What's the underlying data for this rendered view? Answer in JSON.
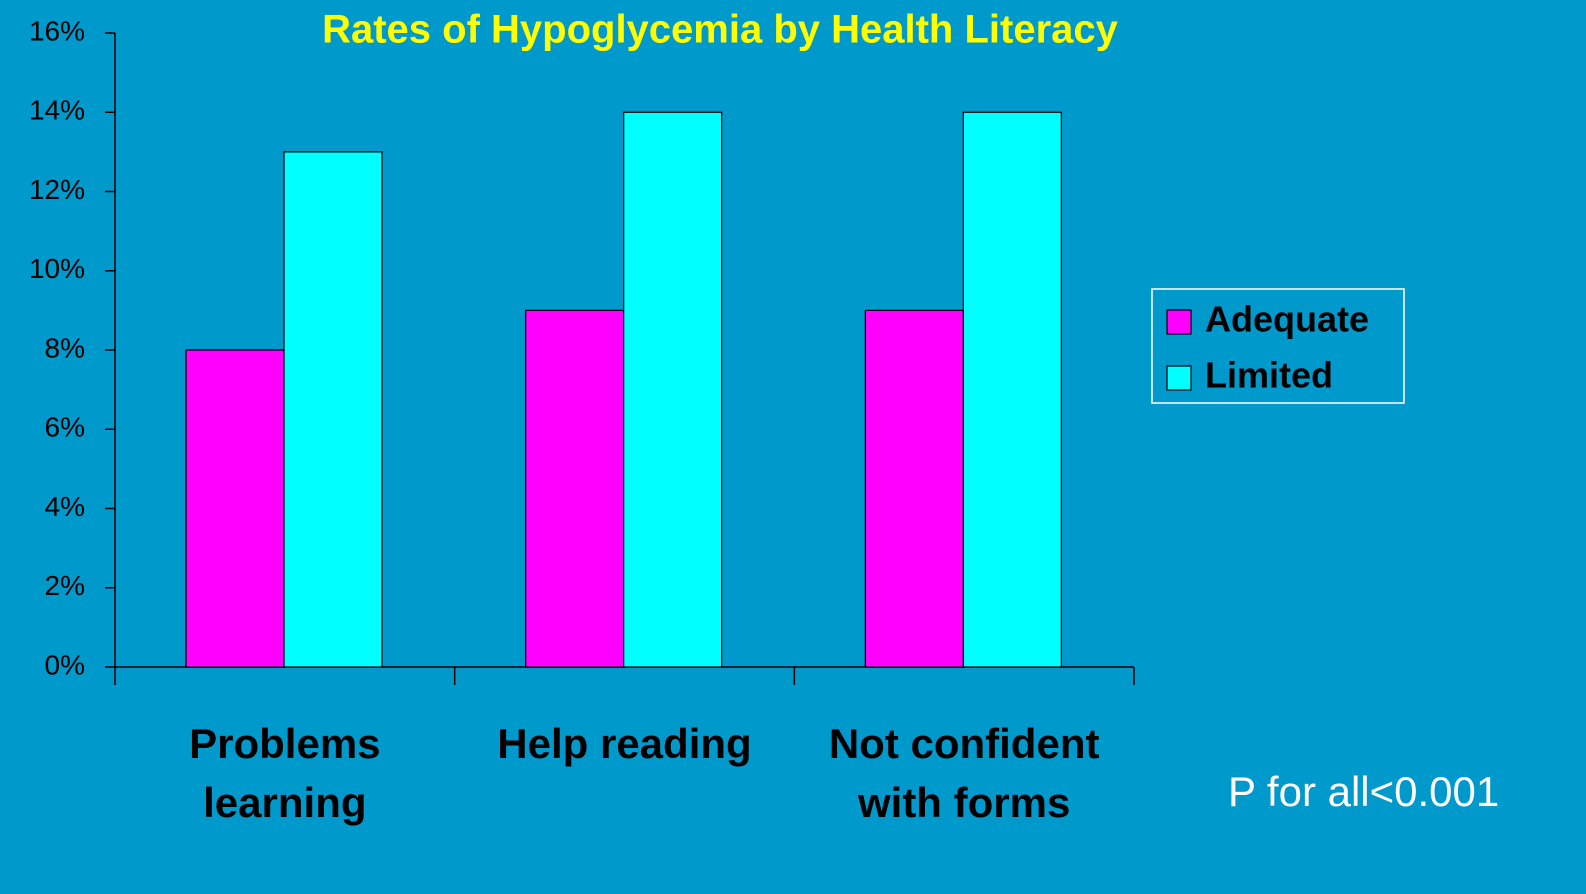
{
  "chart_data": {
    "type": "bar",
    "title": "Rates of Hypoglycemia by Health Literacy",
    "categories": [
      "Problems learning",
      "Help reading",
      "Not confident with forms"
    ],
    "series": [
      {
        "name": "Adequate",
        "color": "#ff00ff",
        "values": [
          8,
          9,
          9
        ]
      },
      {
        "name": "Limited",
        "color": "#00ffff",
        "values": [
          13,
          14,
          14
        ]
      }
    ],
    "ylim": [
      0,
      16
    ],
    "yticks": [
      {
        "value": 0,
        "label": "0%"
      },
      {
        "value": 2,
        "label": "2%"
      },
      {
        "value": 4,
        "label": "4%"
      },
      {
        "value": 6,
        "label": "6%"
      },
      {
        "value": 8,
        "label": "8%"
      },
      {
        "value": 10,
        "label": "10%"
      },
      {
        "value": 12,
        "label": "12%"
      },
      {
        "value": 14,
        "label": "14%"
      },
      {
        "value": 16,
        "label": "16%"
      }
    ],
    "legend": "right",
    "annotation": "P for all<0.001"
  }
}
